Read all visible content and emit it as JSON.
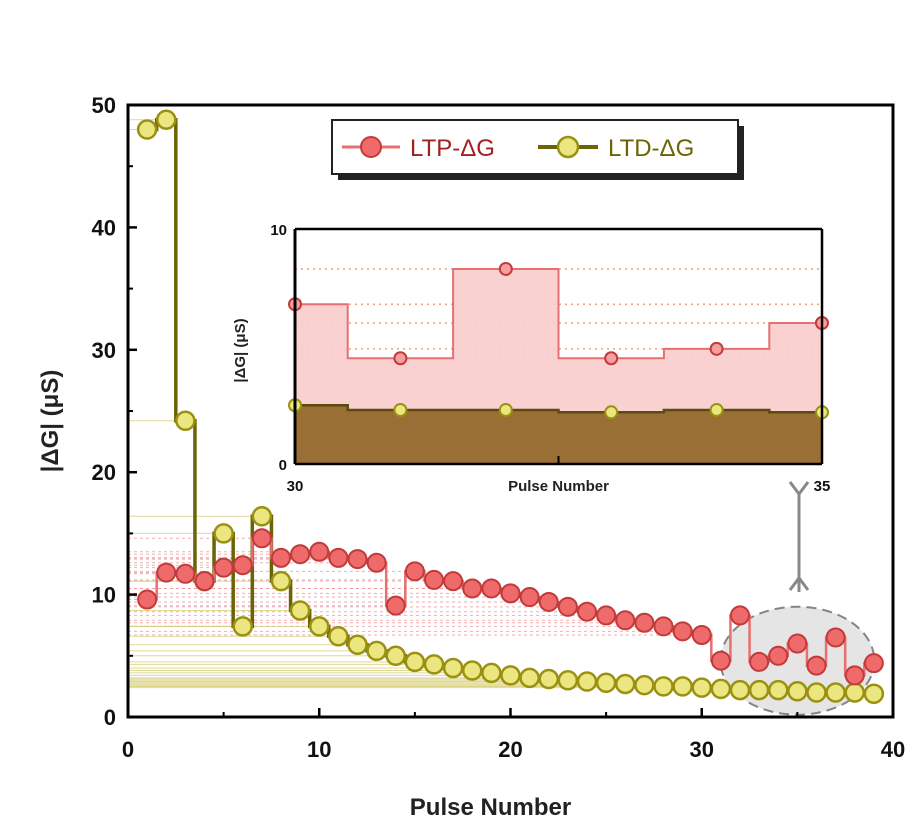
{
  "chart_data": [
    {
      "type": "line",
      "xlabel": "Pulse Number",
      "ylabel": "|ΔG| (μS)",
      "xlim": [
        0,
        40
      ],
      "ylim": [
        0,
        50
      ],
      "xticks": [
        "0",
        "10",
        "20",
        "30",
        "40"
      ],
      "yticks": [
        "0",
        "10",
        "20",
        "30",
        "40",
        "50"
      ],
      "legend_position": "top-right",
      "step": true,
      "series": [
        {
          "name": "LTP-ΔG",
          "color": "#e05a5a",
          "x": [
            1,
            2,
            3,
            4,
            5,
            6,
            7,
            8,
            9,
            10,
            11,
            12,
            13,
            14,
            15,
            16,
            17,
            18,
            19,
            20,
            21,
            22,
            23,
            24,
            25,
            26,
            27,
            28,
            29,
            30,
            31,
            32,
            33,
            34,
            35,
            36,
            37,
            38,
            39
          ],
          "values": [
            9.6,
            11.8,
            11.7,
            11.1,
            12.2,
            12.4,
            14.6,
            13.0,
            13.3,
            13.5,
            13.0,
            12.9,
            12.6,
            9.1,
            11.9,
            11.2,
            11.1,
            10.5,
            10.5,
            10.1,
            9.8,
            9.4,
            9.0,
            8.6,
            8.3,
            7.9,
            7.7,
            7.4,
            7.0,
            6.7,
            4.6,
            8.3,
            4.5,
            5.0,
            6.0,
            4.2,
            6.5,
            3.4,
            4.4
          ]
        },
        {
          "name": "LTD-ΔG",
          "color": "#b5aa1f",
          "x": [
            1,
            2,
            3,
            4,
            5,
            6,
            7,
            8,
            9,
            10,
            11,
            12,
            13,
            14,
            15,
            16,
            17,
            18,
            19,
            20,
            21,
            22,
            23,
            24,
            25,
            26,
            27,
            28,
            29,
            30,
            31,
            32,
            33,
            34,
            35,
            36,
            37,
            38,
            39
          ],
          "values": [
            48.0,
            48.8,
            24.2,
            11.1,
            15.0,
            7.4,
            16.4,
            11.1,
            8.7,
            7.4,
            6.6,
            5.9,
            5.4,
            5.0,
            4.5,
            4.3,
            4.0,
            3.8,
            3.6,
            3.4,
            3.2,
            3.1,
            3.0,
            2.9,
            2.8,
            2.7,
            2.6,
            2.5,
            2.5,
            2.4,
            2.3,
            2.2,
            2.2,
            2.2,
            2.1,
            2.0,
            2.0,
            2.0,
            1.9
          ]
        }
      ]
    },
    {
      "type": "area",
      "xlabel": "Pulse Number",
      "ylabel": "|ΔG| (μS)",
      "xlim": [
        30,
        35
      ],
      "ylim": [
        0,
        10
      ],
      "xticks": [
        "30",
        "35"
      ],
      "yticks": [
        "0",
        "10"
      ],
      "step": true,
      "series": [
        {
          "name": "LTP-ΔG",
          "color": "#e05a5a",
          "x": [
            30,
            31,
            32,
            33,
            34,
            35
          ],
          "values": [
            6.8,
            4.5,
            8.3,
            4.5,
            4.9,
            6.0
          ]
        },
        {
          "name": "LTD-ΔG",
          "color": "#b5aa1f",
          "x": [
            30,
            31,
            32,
            33,
            34,
            35
          ],
          "values": [
            2.5,
            2.3,
            2.3,
            2.2,
            2.3,
            2.2
          ]
        }
      ]
    }
  ]
}
